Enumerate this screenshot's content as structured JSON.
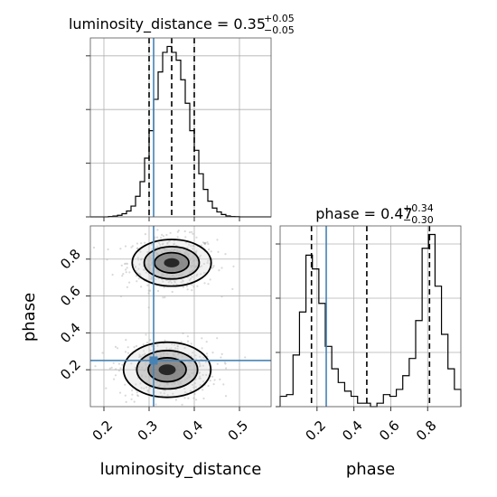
{
  "chart_data": {
    "type": "corner",
    "truth_color": "#4682b4",
    "hist_color": "#000000",
    "grid": true,
    "panels": [
      {
        "id": "luminosity_distance_hist",
        "type": "histogram",
        "parameter": "luminosity_distance",
        "title_main": "luminosity_distance = 0.35",
        "title_sup": "+0.05",
        "title_sub": "−0.05",
        "xlim": [
          0.17,
          0.57
        ],
        "bins": [
          0.17,
          0.18,
          0.19,
          0.2,
          0.21,
          0.22,
          0.23,
          0.24,
          0.25,
          0.26,
          0.27,
          0.28,
          0.29,
          0.3,
          0.31,
          0.32,
          0.33,
          0.34,
          0.35,
          0.36,
          0.37,
          0.38,
          0.39,
          0.4,
          0.41,
          0.42,
          0.43,
          0.44,
          0.45,
          0.46,
          0.47,
          0.48,
          0.49,
          0.5,
          0.51,
          0.52,
          0.53,
          0.54,
          0.55,
          0.56,
          0.57
        ],
        "counts": [
          0,
          0,
          0,
          0,
          0.2,
          0.4,
          0.8,
          1.6,
          3.0,
          5.5,
          10.5,
          18,
          30,
          44,
          60,
          74,
          84,
          87,
          84,
          80,
          70,
          58,
          44,
          34,
          22,
          14,
          8,
          4.5,
          2.5,
          1.2,
          0.5,
          0.2,
          0.1,
          0,
          0,
          0,
          0,
          0,
          0,
          0
        ],
        "quantiles": [
          0.3,
          0.35,
          0.4
        ],
        "truth": 0.31
      },
      {
        "id": "phase_hist",
        "type": "histogram",
        "parameter": "phase",
        "title_main": "phase = 0.47",
        "title_sup": "+0.34",
        "title_sub": "−0.30",
        "xlim": [
          0.0,
          0.98
        ],
        "bins": [
          0.0,
          0.035,
          0.07,
          0.105,
          0.14,
          0.175,
          0.21,
          0.245,
          0.28,
          0.315,
          0.35,
          0.385,
          0.42,
          0.455,
          0.49,
          0.525,
          0.56,
          0.595,
          0.63,
          0.665,
          0.7,
          0.735,
          0.77,
          0.805,
          0.84,
          0.875,
          0.91,
          0.945,
          0.98
        ],
        "counts": [
          0.06,
          0.07,
          0.3,
          0.55,
          0.88,
          0.8,
          0.6,
          0.35,
          0.22,
          0.14,
          0.09,
          0.06,
          0.02,
          0.02,
          0.0,
          0.02,
          0.07,
          0.06,
          0.1,
          0.18,
          0.28,
          0.5,
          0.92,
          1.0,
          0.7,
          0.42,
          0.22,
          0.1
        ],
        "quantiles": [
          0.17,
          0.47,
          0.81
        ],
        "truth": 0.25
      },
      {
        "id": "joint",
        "type": "2d-contour",
        "x_parameter": "luminosity_distance",
        "y_parameter": "phase",
        "xlim": [
          0.17,
          0.57
        ],
        "ylim": [
          0.0,
          0.98
        ],
        "truth": {
          "x": 0.31,
          "y": 0.25
        },
        "modes": [
          {
            "x": 0.35,
            "y": 0.78,
            "sx": 0.038,
            "sy": 0.055,
            "weight": 0.55
          },
          {
            "x": 0.34,
            "y": 0.2,
            "sx": 0.042,
            "sy": 0.065,
            "weight": 0.45
          }
        ]
      }
    ],
    "x_ticks": {
      "luminosity_distance": [
        "0.2",
        "0.3",
        "0.4",
        "0.5"
      ],
      "phase": [
        "0.2",
        "0.4",
        "0.6",
        "0.8"
      ]
    },
    "x_tick_values": {
      "luminosity_distance": [
        0.2,
        0.3,
        0.4,
        0.5
      ],
      "phase": [
        0.2,
        0.4,
        0.6,
        0.8
      ]
    },
    "y_ticks": {
      "phase": [
        "0.2",
        "0.4",
        "0.6",
        "0.8"
      ]
    },
    "y_tick_values": {
      "phase": [
        0.2,
        0.4,
        0.6,
        0.8
      ]
    },
    "xlabels": [
      "luminosity_distance",
      "phase"
    ],
    "ylabel": "phase"
  }
}
